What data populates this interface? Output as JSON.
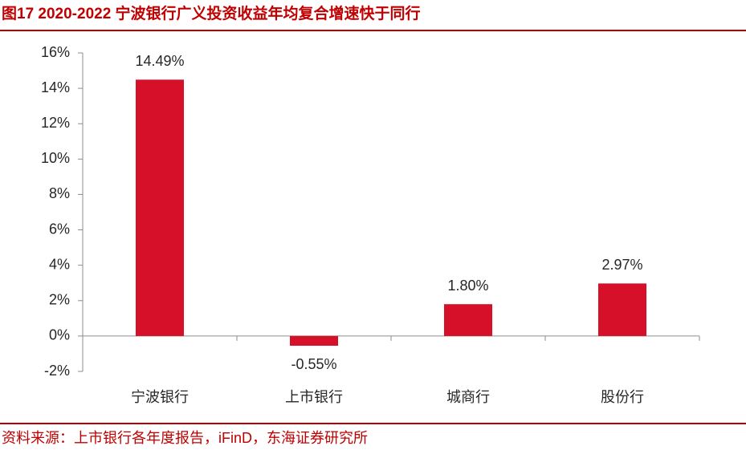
{
  "chart_data": {
    "type": "bar",
    "title": "图17  2020-2022 宁波银行广义投资收益年均复合增速快于同行",
    "source": "资料来源：上市银行各年度报告，iFinD，东海证券研究所",
    "categories": [
      "宁波银行",
      "上市银行",
      "城商行",
      "股份行"
    ],
    "values": [
      14.49,
      -0.55,
      1.8,
      2.97
    ],
    "value_labels": [
      "14.49%",
      "-0.55%",
      "1.80%",
      "2.97%"
    ],
    "color": "#d7102a",
    "ylim": [
      -2,
      16
    ],
    "yticks": [
      {
        "value": -2,
        "label": "-2%"
      },
      {
        "value": 0,
        "label": "0%"
      },
      {
        "value": 2,
        "label": "2%"
      },
      {
        "value": 4,
        "label": "4%"
      },
      {
        "value": 6,
        "label": "6%"
      },
      {
        "value": 8,
        "label": "8%"
      },
      {
        "value": 10,
        "label": "10%"
      },
      {
        "value": 12,
        "label": "12%"
      },
      {
        "value": 14,
        "label": "14%"
      },
      {
        "value": 16,
        "label": "16%"
      }
    ],
    "grid": false
  }
}
